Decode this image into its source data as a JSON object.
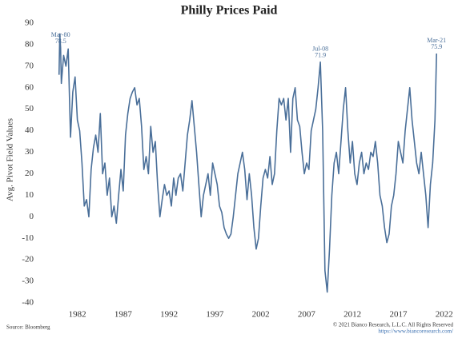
{
  "chart_data": {
    "type": "line",
    "title": "Philly Prices Paid",
    "y_label": "Avg. Pivot Field Values",
    "source": "Source: Bloomberg",
    "copyright": "© 2021 Bianco Research, L.L.C. All Rights Reserved",
    "url": "https://www.biancoresearch.com/",
    "color": "#4a6f99",
    "x": [
      1980,
      1980.08,
      1980.17,
      1980.25,
      1980.5,
      1980.75,
      1981,
      1981.25,
      1981.5,
      1981.75,
      1982,
      1982.25,
      1982.5,
      1982.75,
      1983,
      1983.25,
      1983.5,
      1983.75,
      1984,
      1984.25,
      1984.5,
      1984.75,
      1985,
      1985.25,
      1985.5,
      1985.75,
      1986,
      1986.25,
      1986.5,
      1986.75,
      1987,
      1987.25,
      1987.5,
      1987.75,
      1988,
      1988.25,
      1988.5,
      1988.75,
      1989,
      1989.25,
      1989.5,
      1989.75,
      1990,
      1990.25,
      1990.5,
      1990.75,
      1991,
      1991.25,
      1991.5,
      1991.75,
      1992,
      1992.25,
      1992.5,
      1992.75,
      1993,
      1993.25,
      1993.5,
      1993.75,
      1994,
      1994.25,
      1994.5,
      1994.75,
      1995,
      1995.25,
      1995.5,
      1995.75,
      1996,
      1996.25,
      1996.5,
      1996.75,
      1997,
      1997.25,
      1997.5,
      1997.75,
      1998,
      1998.25,
      1998.5,
      1998.75,
      1999,
      1999.25,
      1999.5,
      1999.75,
      2000,
      2000.25,
      2000.5,
      2000.75,
      2001,
      2001.25,
      2001.5,
      2001.75,
      2002,
      2002.25,
      2002.5,
      2002.75,
      2003,
      2003.25,
      2003.5,
      2003.75,
      2004,
      2004.25,
      2004.5,
      2004.75,
      2005,
      2005.25,
      2005.5,
      2005.75,
      2006,
      2006.25,
      2006.5,
      2006.75,
      2007,
      2007.25,
      2007.5,
      2007.75,
      2008,
      2008.25,
      2008.5,
      2008.75,
      2009,
      2009.25,
      2009.5,
      2009.75,
      2010,
      2010.25,
      2010.5,
      2010.75,
      2011,
      2011.25,
      2011.5,
      2011.75,
      2012,
      2012.25,
      2012.5,
      2012.75,
      2013,
      2013.25,
      2013.5,
      2013.75,
      2014,
      2014.25,
      2014.5,
      2014.75,
      2015,
      2015.25,
      2015.5,
      2015.75,
      2016,
      2016.25,
      2016.5,
      2016.75,
      2017,
      2017.25,
      2017.5,
      2017.75,
      2018,
      2018.25,
      2018.5,
      2018.75,
      2019,
      2019.25,
      2019.5,
      2019.75,
      2020,
      2020.25,
      2020.5,
      2020.75,
      2021,
      2021.17
    ],
    "values": [
      66,
      85,
      78.5,
      62,
      75,
      70,
      78,
      37,
      58,
      65,
      45,
      40,
      25,
      5,
      8,
      0,
      22,
      32,
      38,
      30,
      48,
      20,
      25,
      10,
      18,
      0,
      5,
      -3,
      10,
      22,
      12,
      38,
      48,
      55,
      58,
      60,
      52,
      55,
      42,
      22,
      28,
      20,
      42,
      30,
      35,
      15,
      0,
      8,
      15,
      10,
      12,
      5,
      18,
      10,
      18,
      20,
      12,
      25,
      38,
      45,
      54,
      42,
      30,
      15,
      0,
      10,
      15,
      20,
      10,
      25,
      20,
      15,
      5,
      2,
      -5,
      -8,
      -10,
      -8,
      0,
      10,
      20,
      25,
      30,
      22,
      8,
      20,
      10,
      -5,
      -15,
      -10,
      5,
      18,
      22,
      18,
      28,
      15,
      20,
      40,
      55,
      52,
      55,
      45,
      55,
      30,
      55,
      60,
      45,
      42,
      30,
      20,
      25,
      22,
      40,
      45,
      50,
      60,
      71.9,
      40,
      -25,
      -35,
      -15,
      10,
      25,
      30,
      20,
      35,
      50,
      60,
      40,
      25,
      35,
      20,
      15,
      25,
      30,
      20,
      25,
      22,
      30,
      28,
      35,
      25,
      10,
      5,
      -5,
      -12,
      -8,
      5,
      10,
      20,
      35,
      30,
      25,
      40,
      50,
      60,
      45,
      35,
      25,
      20,
      30,
      20,
      10,
      -5,
      15,
      25,
      45,
      75.9
    ],
    "annotations": [
      {
        "text": "Mar-80",
        "x": 1980.17,
        "y": 78.5
      },
      {
        "text": "Jul-08",
        "x": 2008.5,
        "y": 71.9
      },
      {
        "text": "Mar-21",
        "x": 2021.17,
        "y": 75.9
      }
    ],
    "xlim": [
      1978.8,
      2022.9
    ],
    "xticks": [
      1982,
      1987,
      1992,
      1997,
      2002,
      2007,
      2012,
      2017,
      2022
    ],
    "ylim": [
      -40,
      90
    ],
    "yticks": [
      -40,
      -30,
      -20,
      -10,
      0,
      10,
      20,
      30,
      40,
      50,
      60,
      70,
      80,
      90
    ]
  }
}
